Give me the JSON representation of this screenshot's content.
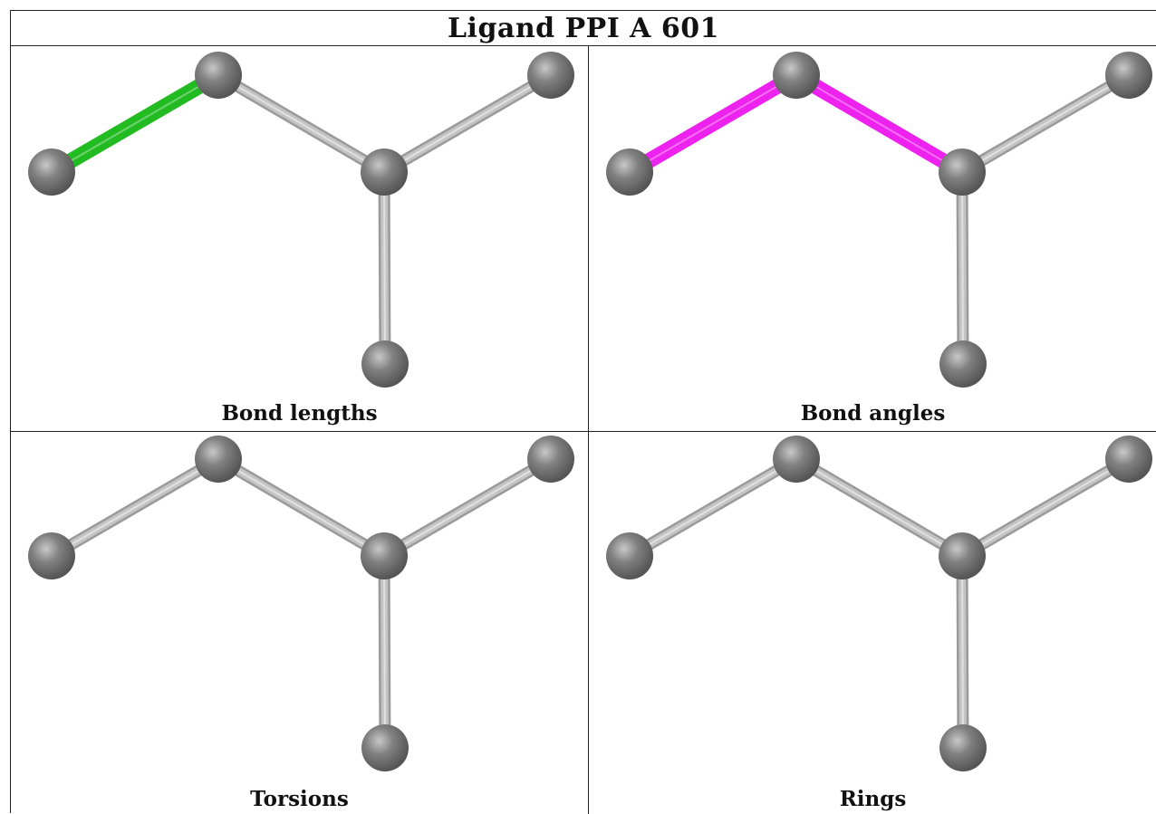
{
  "title": "Ligand PPI A 601",
  "colors": {
    "atom": "#808080",
    "bond": "#c4c4c4",
    "bond_length_highlight": "#22bb22",
    "bond_angle_highlight": "#ee22ee"
  },
  "molecule": {
    "atoms": [
      "a1",
      "a2",
      "a3",
      "a4",
      "a5"
    ],
    "bonds": [
      [
        "a1",
        "a2"
      ],
      [
        "a2",
        "a3"
      ],
      [
        "a3",
        "a4"
      ],
      [
        "a3",
        "a5"
      ]
    ]
  },
  "panels": [
    {
      "id": "bond-lengths",
      "caption": "Bond lengths",
      "highlight_bonds": [
        0
      ],
      "highlight_color_key": "bond_length_highlight"
    },
    {
      "id": "bond-angles",
      "caption": "Bond angles",
      "highlight_bonds": [
        0,
        1
      ],
      "highlight_color_key": "bond_angle_highlight"
    },
    {
      "id": "torsions",
      "caption": "Torsions",
      "highlight_bonds": [],
      "highlight_color_key": ""
    },
    {
      "id": "rings",
      "caption": "Rings",
      "highlight_bonds": [],
      "highlight_color_key": ""
    }
  ]
}
